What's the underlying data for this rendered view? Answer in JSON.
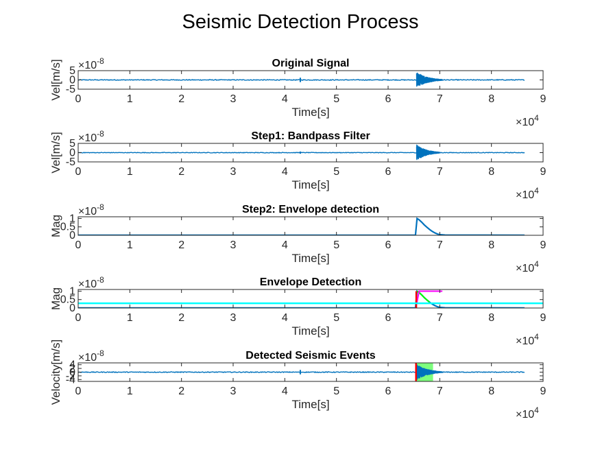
{
  "figure_title": "Seismic Detection Process",
  "colors": {
    "signal": "#0072BD",
    "threshold": "#00FFFF",
    "marker": "#FF00FF",
    "detection": "#00FF00",
    "event_region": "#66FF66",
    "onset": "#FF0000"
  },
  "chart_data": [
    {
      "type": "line",
      "title": "Original Signal",
      "xlabel": "Time[s]",
      "ylabel": "Vel[m/s]",
      "xlim": [
        0,
        90000
      ],
      "ylim": [
        -5e-08,
        5e-08
      ],
      "x_ticks": [
        "0",
        "1",
        "2",
        "3",
        "4",
        "5",
        "6",
        "7",
        "8",
        "9"
      ],
      "y_ticks": [
        "-5",
        "0",
        "5"
      ],
      "x_exponent": "×10",
      "x_exponent_power": "4",
      "y_exponent": "×10",
      "y_exponent_power": "-8",
      "series": [
        {
          "kind": "noise",
          "x_start": 0,
          "x_end": 86400,
          "amplitude": 2e-09
        },
        {
          "kind": "spike",
          "x": 43000,
          "amplitude": 1.2e-08
        },
        {
          "kind": "burst",
          "x_start": 65500,
          "peak": 4.5e-08,
          "decay": 2200,
          "x_end": 70500
        }
      ]
    },
    {
      "type": "line",
      "title": "Step1: Bandpass Filter",
      "xlabel": "Time[s]",
      "ylabel": "Vel[m/s]",
      "xlim": [
        0,
        90000
      ],
      "ylim": [
        -5e-08,
        5e-08
      ],
      "x_ticks": [
        "0",
        "1",
        "2",
        "3",
        "4",
        "5",
        "6",
        "7",
        "8",
        "9"
      ],
      "y_ticks": [
        "-5",
        "0",
        "5"
      ],
      "x_exponent": "×10",
      "x_exponent_power": "4",
      "y_exponent": "×10",
      "y_exponent_power": "-8",
      "series": [
        {
          "kind": "noise",
          "x_start": 0,
          "x_end": 86400,
          "amplitude": 1.5e-09
        },
        {
          "kind": "spike",
          "x": 43000,
          "amplitude": 6e-09
        },
        {
          "kind": "burst",
          "x_start": 65500,
          "peak": 4.5e-08,
          "decay": 2000,
          "x_end": 70000
        }
      ]
    },
    {
      "type": "line",
      "title": "Step2: Envelope detection",
      "xlabel": "Time[s]",
      "ylabel": "Mag",
      "xlim": [
        0,
        90000
      ],
      "ylim": [
        0,
        1.1e-08
      ],
      "x_ticks": [
        "0",
        "1",
        "2",
        "3",
        "4",
        "5",
        "6",
        "7",
        "8",
        "9"
      ],
      "y_ticks": [
        "0",
        "0.5",
        "1"
      ],
      "x_exponent": "×10",
      "x_exponent_power": "4",
      "y_exponent": "×10",
      "y_exponent_power": "-8",
      "series": [
        {
          "kind": "envelope",
          "x": [
            0,
            65300,
            65600,
            66000,
            66500,
            67000,
            67500,
            68000,
            68500,
            69000,
            69500,
            70000,
            71000,
            86400
          ],
          "y": [
            1e-10,
            1e-10,
            1e-08,
            9.2e-09,
            7.8e-09,
            6.2e-09,
            4.8e-09,
            3.5e-09,
            2.4e-09,
            1.5e-09,
            8e-10,
            4e-10,
            1.5e-10,
            1e-10
          ]
        }
      ]
    },
    {
      "type": "line",
      "title": "Envelope Detection",
      "xlabel": "Time[s]",
      "ylabel": "Mag",
      "xlim": [
        0,
        90000
      ],
      "ylim": [
        0,
        1.1e-08
      ],
      "x_ticks": [
        "0",
        "1",
        "2",
        "3",
        "4",
        "5",
        "6",
        "7",
        "8",
        "9"
      ],
      "y_ticks": [
        "0",
        "0.5",
        "1"
      ],
      "x_exponent": "×10",
      "x_exponent_power": "4",
      "y_exponent": "×10",
      "y_exponent_power": "-8",
      "series": [
        {
          "kind": "hline",
          "y": 2.8e-09,
          "x_start": 0,
          "x_end": 90000,
          "color": "#00FFFF"
        },
        {
          "kind": "envelope",
          "x": [
            0,
            65300,
            65600,
            66000,
            66500,
            67000,
            67500,
            68000,
            68500,
            69000,
            69500,
            70000,
            71000,
            86400
          ],
          "y": [
            1e-10,
            1e-10,
            1e-08,
            9.2e-09,
            7.8e-09,
            6.2e-09,
            4.8e-09,
            3.5e-09,
            2.4e-09,
            1.5e-09,
            8e-10,
            4e-10,
            1.5e-10,
            1e-10
          ]
        },
        {
          "kind": "polyline",
          "x": [
            65600,
            66000,
            66500,
            67000,
            67500,
            68000
          ],
          "y": [
            1e-08,
            9.2e-09,
            7.8e-09,
            6.2e-09,
            4.8e-09,
            3.5e-09
          ],
          "color": "#00FF00"
        },
        {
          "kind": "polyline",
          "x": [
            65500,
            66000,
            70500
          ],
          "y": [
            2e-09,
            1e-08,
            1e-08
          ],
          "color": "#FF00FF"
        },
        {
          "kind": "vline",
          "x": 65450,
          "y": [
            0,
            1e-08
          ],
          "color": "#FF0000"
        }
      ]
    },
    {
      "type": "line",
      "title": "Detected Seismic Events",
      "xlabel": "Time[s]",
      "ylabel": "Velocity[m/s]",
      "xlim": [
        0,
        90000
      ],
      "ylim": [
        -5e-08,
        5e-08
      ],
      "x_ticks": [
        "0",
        "1",
        "2",
        "3",
        "4",
        "5",
        "6",
        "7",
        "8",
        "9"
      ],
      "y_ticks": [
        "-4",
        "-2",
        "0",
        "2",
        "4"
      ],
      "y_tick_values": [
        -4e-08,
        -2e-08,
        0,
        2e-08,
        4e-08
      ],
      "x_exponent": "×10",
      "x_exponent_power": "4",
      "y_exponent": "×10",
      "y_exponent_power": "-8",
      "series": [
        {
          "kind": "region",
          "x_start": 65300,
          "x_end": 68700,
          "color": "#66FF66"
        },
        {
          "kind": "noise",
          "x_start": 0,
          "x_end": 86400,
          "amplitude": 2e-09
        },
        {
          "kind": "spike",
          "x": 43000,
          "amplitude": 1.2e-08
        },
        {
          "kind": "burst",
          "x_start": 65500,
          "peak": 4.5e-08,
          "decay": 2200,
          "x_end": 70500
        },
        {
          "kind": "vline",
          "x": 65400,
          "y": [
            -5e-08,
            5e-08
          ],
          "color": "#FF0000"
        }
      ]
    }
  ]
}
